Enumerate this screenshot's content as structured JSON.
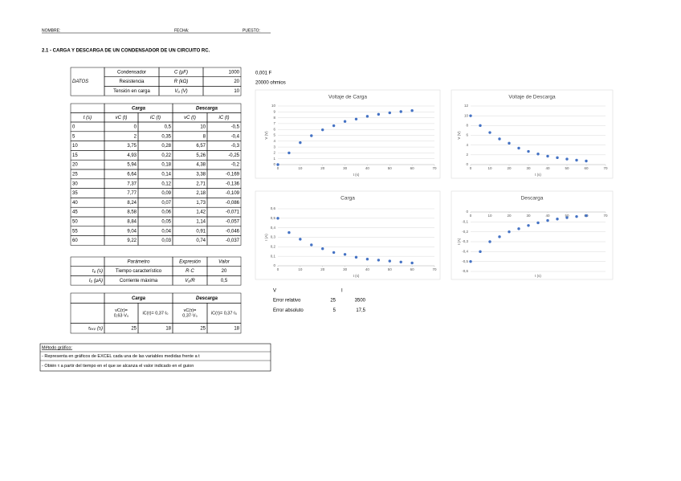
{
  "header": {
    "name_label": "NOMBRE:",
    "date_label": "FECHA:",
    "post_label": "PUESTO:",
    "title": "2.1 - CARGA Y DESCARGA DE UN CONDENSADOR DE UN CIRCUITO RC."
  },
  "datos": {
    "label": "DATOS",
    "rows": [
      [
        "Condensador",
        "C (μF)",
        "1000"
      ],
      [
        "Resistencia",
        "R (kΩ)",
        "20"
      ],
      [
        "Tensión en carga",
        "V₀ (V)",
        "10"
      ]
    ],
    "notes": [
      "0,001 F",
      "20000 ohmios"
    ]
  },
  "medidas": {
    "groups": [
      "Carga",
      "Descarga"
    ],
    "columns": [
      "t (s)",
      "vC (t)",
      "iC (t)",
      "vC (t)",
      "iC (t)"
    ],
    "rows": [
      [
        "0",
        "0",
        "0,5",
        "10",
        "-0,5"
      ],
      [
        "5",
        "2",
        "0,35",
        "8",
        "-0,4"
      ],
      [
        "10",
        "3,75",
        "0,28",
        "6,57",
        "-0,3"
      ],
      [
        "15",
        "4,93",
        "0,22",
        "5,26",
        "-0,25"
      ],
      [
        "20",
        "5,94",
        "0,18",
        "4,38",
        "-0,2"
      ],
      [
        "25",
        "6,64",
        "0,14",
        "3,38",
        "-0,169"
      ],
      [
        "30",
        "7,37",
        "0,12",
        "2,71",
        "-0,136"
      ],
      [
        "35",
        "7,77",
        "0,09",
        "2,18",
        "-0,109"
      ],
      [
        "40",
        "8,24",
        "0,07",
        "1,73",
        "-0,086"
      ],
      [
        "45",
        "8,58",
        "0,06",
        "1,42",
        "-0,071"
      ],
      [
        "50",
        "8,84",
        "0,05",
        "1,14",
        "-0,057"
      ],
      [
        "55",
        "9,04",
        "0,04",
        "0,91",
        "-0,046"
      ],
      [
        "60",
        "9,22",
        "0,03",
        "0,74",
        "-0,037"
      ]
    ]
  },
  "parametros": {
    "columns": [
      "Parámetro",
      "Expresión",
      "Valor"
    ],
    "rows": [
      [
        "τ₀ (s)",
        "Tiempo característico",
        "R·C",
        "20"
      ],
      [
        "I₀ (μA)",
        "Corriente máxima",
        "V₀/R",
        "0,5"
      ]
    ]
  },
  "experimental": {
    "groups": [
      "Carga",
      "Descarga"
    ],
    "conditions": [
      [
        "vC(τ)=",
        "0,63·V₀"
      ],
      [
        "iC(τ)= 0,37·I₀"
      ],
      [
        "vC(τ)=",
        "0,37·V₀"
      ],
      [
        "iC(τ)= 0,37·I₀"
      ]
    ],
    "row_label": "τₑₓₚ (s)",
    "values": [
      "25",
      "18",
      "25",
      "18"
    ]
  },
  "errores": {
    "columns": [
      "V",
      "I"
    ],
    "rows": [
      [
        "Error relativo",
        "25",
        "3500"
      ],
      [
        "Error absoluto",
        "5",
        "17,5"
      ]
    ]
  },
  "metodo": {
    "title": "Método gráfico:",
    "items": [
      "- Representa en gráficos de EXCEL cada una de las variables medidas frente a t",
      "- Obtén τ a partir del tiempo en el que se alcanza el valor indicado en el guion"
    ]
  },
  "chart_data": [
    {
      "type": "scatter",
      "title": "Voltaje de Carga",
      "x_label": "t (s)",
      "y_label": "V (V)",
      "grid": true,
      "color": "#4472c4",
      "x": [
        0,
        5,
        10,
        15,
        20,
        25,
        30,
        35,
        40,
        45,
        50,
        55,
        60
      ],
      "values": [
        0,
        2,
        3.75,
        4.93,
        5.94,
        6.64,
        7.37,
        7.77,
        8.24,
        8.58,
        8.84,
        9.04,
        9.22
      ],
      "xlim": [
        0,
        70
      ],
      "xticks": [
        0,
        10,
        20,
        30,
        40,
        50,
        60,
        70
      ],
      "ylim": [
        0,
        10
      ],
      "yticks": [
        0,
        1,
        2,
        3,
        4,
        5,
        6,
        7,
        8,
        9,
        10
      ]
    },
    {
      "type": "scatter",
      "title": "Voltaje de Descarga",
      "x_label": "t (s)",
      "y_label": "V (V)",
      "grid": true,
      "color": "#4472c4",
      "x": [
        0,
        5,
        10,
        15,
        20,
        25,
        30,
        35,
        40,
        45,
        50,
        55,
        60
      ],
      "values": [
        10,
        8,
        6.57,
        5.26,
        4.38,
        3.38,
        2.71,
        2.18,
        1.73,
        1.42,
        1.14,
        0.91,
        0.74
      ],
      "xlim": [
        0,
        70
      ],
      "xticks": [
        0,
        10,
        20,
        30,
        40,
        50,
        60,
        70
      ],
      "ylim": [
        0,
        12
      ],
      "yticks": [
        0,
        2,
        4,
        6,
        8,
        10,
        12
      ]
    },
    {
      "type": "scatter",
      "title": "Carga",
      "x_label": "t (s)",
      "y_label": "I (A)",
      "grid": true,
      "color": "#4472c4",
      "x": [
        0,
        5,
        10,
        15,
        20,
        25,
        30,
        35,
        40,
        45,
        50,
        55,
        60
      ],
      "values": [
        0.5,
        0.35,
        0.28,
        0.22,
        0.18,
        0.14,
        0.12,
        0.09,
        0.07,
        0.06,
        0.05,
        0.04,
        0.03
      ],
      "xlim": [
        0,
        70
      ],
      "xticks": [
        0,
        10,
        20,
        30,
        40,
        50,
        60,
        70
      ],
      "ylim": [
        0,
        0.6
      ],
      "yticks": [
        0,
        {
          "value": 0.1,
          "label": "0,1"
        },
        {
          "value": 0.2,
          "label": "0,2"
        },
        {
          "value": 0.3,
          "label": "0,3"
        },
        {
          "value": 0.4,
          "label": "0,4"
        },
        {
          "value": 0.5,
          "label": "0,5"
        },
        {
          "value": 0.6,
          "label": "0,6"
        }
      ]
    },
    {
      "type": "scatter",
      "title": "Descarga",
      "x_label": "t (s)",
      "y_label": "I (A)",
      "grid": true,
      "color": "#4472c4",
      "x": [
        0,
        5,
        10,
        15,
        20,
        25,
        30,
        35,
        40,
        45,
        50,
        55,
        60
      ],
      "values": [
        -0.5,
        -0.4,
        -0.3,
        -0.25,
        -0.2,
        -0.169,
        -0.136,
        -0.109,
        -0.086,
        -0.071,
        -0.057,
        -0.046,
        -0.037
      ],
      "xlim": [
        0,
        70
      ],
      "xticks": [
        0,
        10,
        20,
        30,
        40,
        50,
        60,
        70
      ],
      "ylim": [
        -0.6,
        0
      ],
      "yticks": [
        0,
        {
          "value": -0.1,
          "label": "-0,1"
        },
        {
          "value": -0.2,
          "label": "-0,2"
        },
        {
          "value": -0.3,
          "label": "-0,3"
        },
        {
          "value": -0.4,
          "label": "-0,4"
        },
        {
          "value": -0.5,
          "label": "-0,5"
        },
        {
          "value": -0.6,
          "label": "-0,6"
        }
      ]
    }
  ]
}
